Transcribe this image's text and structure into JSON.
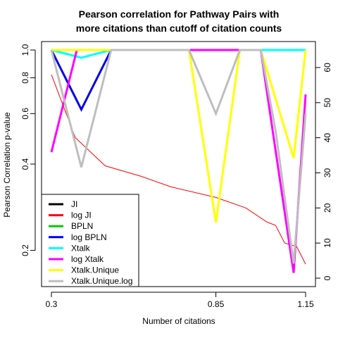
{
  "chart_data": {
    "type": "line",
    "title_line1": "Pearson correlation for Pathway Pairs with",
    "title_line2": "more citations than cutoff of citation counts",
    "xlabel": "Number of citations",
    "ylabel": "Pearson Correlation p-value",
    "x": [
      0.3,
      0.35,
      0.4,
      0.45,
      0.5,
      0.55,
      0.6,
      0.65,
      0.7,
      0.75,
      0.8,
      0.85,
      0.9,
      0.95,
      1.0,
      1.05,
      1.1,
      1.15
    ],
    "x_ticks": [
      "0.3",
      "0.85",
      "1.15"
    ],
    "x_tick_values": [
      0.3,
      0.85,
      1.15
    ],
    "xlim": [
      0.3,
      1.15
    ],
    "y_left_scale": "log",
    "y_left_ticks": [
      "0.2",
      "0.4",
      "0.6",
      "0.8",
      "1.0"
    ],
    "y_left_tick_values": [
      0.2,
      0.4,
      0.6,
      0.8,
      1.0
    ],
    "ylim_left": [
      0.16,
      1.0
    ],
    "y_right_ticks": [
      "0",
      "10",
      "20",
      "30",
      "40",
      "50",
      "60"
    ],
    "y_right_tick_values": [
      0,
      10,
      20,
      30,
      40,
      50,
      60
    ],
    "ylim_right": [
      0,
      65
    ],
    "legend_position": "bottom-left",
    "series": [
      {
        "name": "JI",
        "color": "#000000",
        "axis": "left",
        "values": [
          1.0,
          1.0,
          1.0,
          1.0,
          1.0,
          1.0,
          1.0,
          1.0,
          1.0,
          1.0,
          1.0,
          1.0,
          1.0,
          1.0,
          1.0,
          1.0,
          1.0,
          1.0
        ]
      },
      {
        "name": "log JI",
        "color": "#ff0000",
        "axis": "right",
        "thin": true,
        "values": [
          58,
          40,
          32,
          29,
          26,
          23,
          20,
          16,
          15,
          10,
          9,
          4
        ],
        "x": [
          0.3,
          0.38,
          0.48,
          0.6,
          0.7,
          0.85,
          0.95,
          1.02,
          1.05,
          1.08,
          1.12,
          1.15
        ]
      },
      {
        "name": "BPLN",
        "color": "#00cc00",
        "axis": "left",
        "values": [
          1.0,
          1.0,
          1.0,
          1.0,
          1.0,
          1.0,
          1.0,
          1.0,
          1.0,
          1.0,
          1.0,
          1.0,
          1.0,
          1.0,
          1.0,
          1.0,
          1.0,
          1.0
        ]
      },
      {
        "name": "log BPLN",
        "color": "#0000ee",
        "axis": "left",
        "values": [
          1.0,
          0.62,
          1.0,
          1.0,
          1.0,
          1.0,
          1.0,
          1.0,
          1.0,
          1.0,
          1.0,
          1.0,
          1.0,
          1.0,
          1.0,
          1.0,
          1.0,
          1.0
        ],
        "x": [
          0.3,
          0.4,
          0.5,
          0.55,
          0.6,
          0.65,
          0.7,
          0.75,
          0.8,
          0.85,
          0.9,
          0.95,
          1.0,
          1.05,
          1.08,
          1.1,
          1.12,
          1.15
        ]
      },
      {
        "name": "Xtalk",
        "color": "#00ffff",
        "axis": "left",
        "values": [
          1.0,
          0.94,
          1.0,
          1.0,
          1.0,
          1.0
        ],
        "x": [
          0.3,
          0.4,
          0.5,
          0.85,
          1.0,
          1.15
        ]
      },
      {
        "name": "log Xtalk",
        "color": "#ff00ff",
        "axis": "left",
        "values": [
          0.44,
          1.0,
          1.0,
          1.0,
          1.0,
          1.0,
          1.0,
          0.167,
          0.7
        ],
        "x": [
          0.3,
          0.385,
          0.5,
          0.7,
          0.85,
          0.99,
          1.0,
          1.11,
          1.15
        ]
      },
      {
        "name": "Xtalk.Unique",
        "color": "#ffff00",
        "axis": "left",
        "values": [
          1.0,
          1.0,
          1.0,
          1.0,
          0.25,
          1.0,
          1.0,
          0.42,
          1.0
        ],
        "x": [
          0.3,
          0.5,
          0.7,
          0.76,
          0.85,
          0.93,
          1.0,
          1.11,
          1.15
        ]
      },
      {
        "name": "Xtalk.Unique.log",
        "color": "#bebebe",
        "axis": "left",
        "values": [
          1.0,
          0.39,
          1.0,
          1.0,
          1.0,
          0.6,
          1.0,
          1.0,
          0.52,
          0.18,
          0.6
        ],
        "x": [
          0.3,
          0.4,
          0.5,
          0.6,
          0.76,
          0.85,
          0.93,
          1.0,
          1.05,
          1.11,
          1.15
        ]
      }
    ]
  }
}
